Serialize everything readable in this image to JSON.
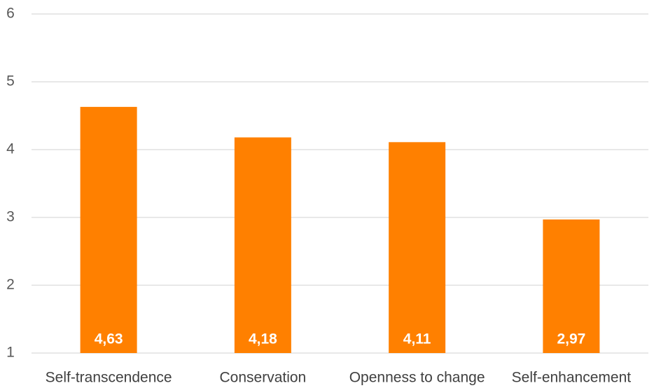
{
  "chart_data": {
    "type": "bar",
    "categories": [
      "Self-transcendence",
      "Conservation",
      "Openness to change",
      "Self-enhancement"
    ],
    "values": [
      4.63,
      4.18,
      4.11,
      2.97
    ],
    "value_labels": [
      "4,63",
      "4,18",
      "4,11",
      "2,97"
    ],
    "ylim": [
      1,
      6
    ],
    "yticks": [
      1,
      2,
      3,
      4,
      5,
      6
    ],
    "ytick_labels": [
      "1",
      "2",
      "3",
      "4",
      "5",
      "6"
    ],
    "grid": true,
    "bar_color": "#ff8000",
    "label_color": "#ffffff",
    "grid_color": "#d9d9d9"
  }
}
